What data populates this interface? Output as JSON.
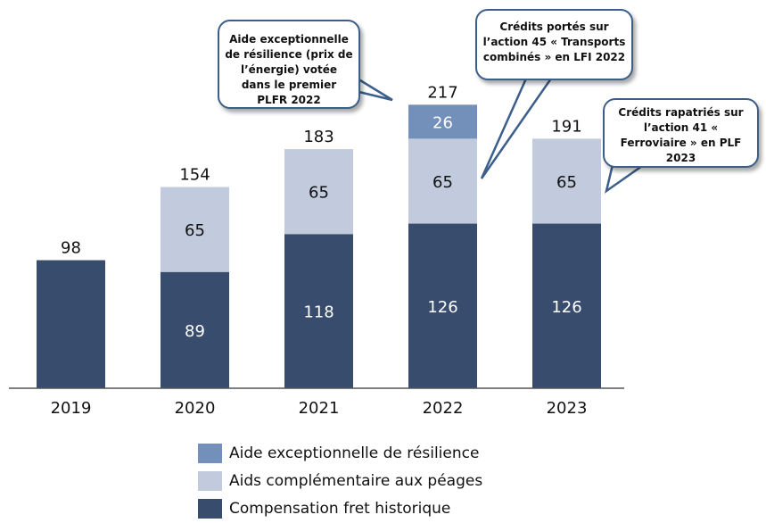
{
  "chart_data": {
    "type": "bar",
    "stacked": true,
    "categories": [
      "2019",
      "2020",
      "2021",
      "2022",
      "2023"
    ],
    "series": [
      {
        "name": "Compensation fret historique",
        "values": [
          98,
          89,
          118,
          126,
          126
        ],
        "color": "#384c6d",
        "label_color": "#ffffff"
      },
      {
        "name": "Aids complémentaire aux péages",
        "values": [
          0,
          65,
          65,
          65,
          65
        ],
        "color": "#c1cbdd",
        "label_color": "#111111"
      },
      {
        "name": "Aide exceptionnelle de résilience",
        "values": [
          0,
          0,
          0,
          26,
          0
        ],
        "color": "#7390ba",
        "label_color": "#ffffff"
      }
    ],
    "totals": [
      98,
      154,
      183,
      217,
      191
    ],
    "ylim": [
      0,
      230
    ],
    "grid": false,
    "legend_position": "bottom",
    "annotations": [
      {
        "id": "callout-2022-resilience",
        "text": "Aide exceptionnelle de résilience (prix de l’énergie) votée dans le premier PLFR 2022"
      },
      {
        "id": "callout-lfi-2022",
        "text": "Crédits portés sur l’action 45 « Transports combinés » en LFI 2022"
      },
      {
        "id": "callout-plf-2023",
        "text": "Crédits rapatriés sur l’action 41 « Ferroviaire » en PLF 2023"
      }
    ]
  }
}
